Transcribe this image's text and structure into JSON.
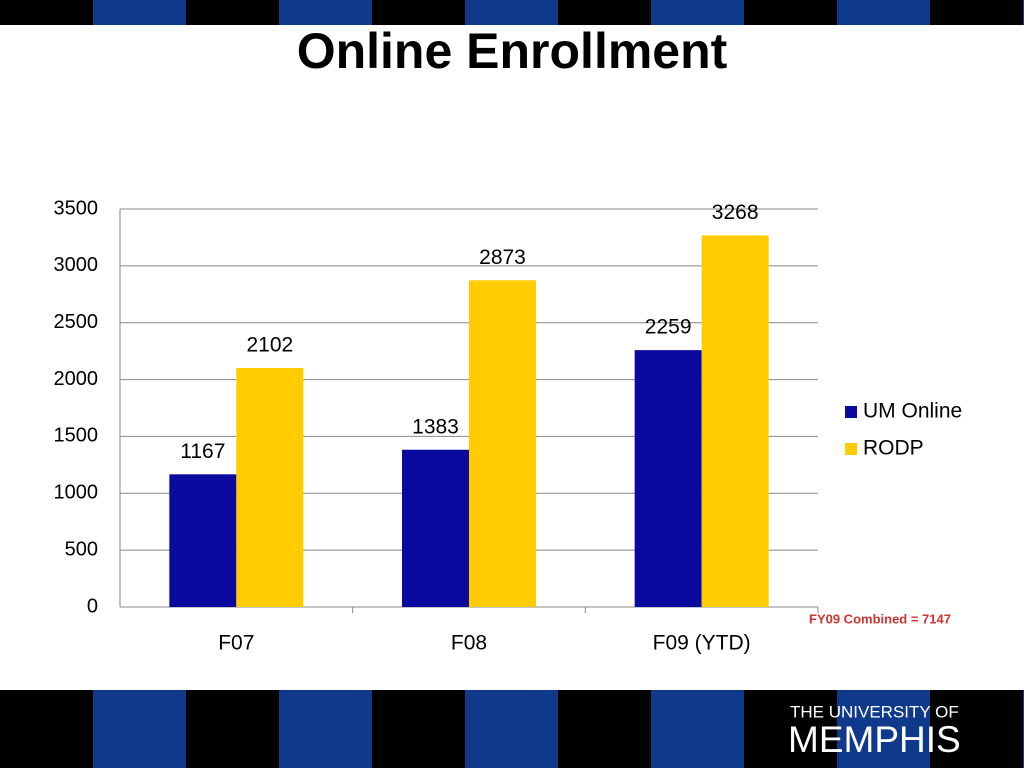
{
  "chart_data": {
    "type": "bar",
    "title": "Online Enrollment",
    "categories": [
      "F07",
      "F08",
      "F09 (YTD)"
    ],
    "series": [
      {
        "name": "UM Online",
        "color": "#0a0a9e",
        "values": [
          1167,
          1383,
          2259
        ]
      },
      {
        "name": "RODP",
        "color": "#ffcc00",
        "values": [
          2102,
          2873,
          3268
        ]
      }
    ],
    "ylim": [
      0,
      3500
    ],
    "yticks": [
      0,
      500,
      1000,
      1500,
      2000,
      2500,
      3000,
      3500
    ],
    "grid": true,
    "legend": "right",
    "annotation": "FY09 Combined = 7147"
  },
  "logo": {
    "line1": "THE UNIVERSITY OF",
    "line2": "MEMPHIS"
  }
}
